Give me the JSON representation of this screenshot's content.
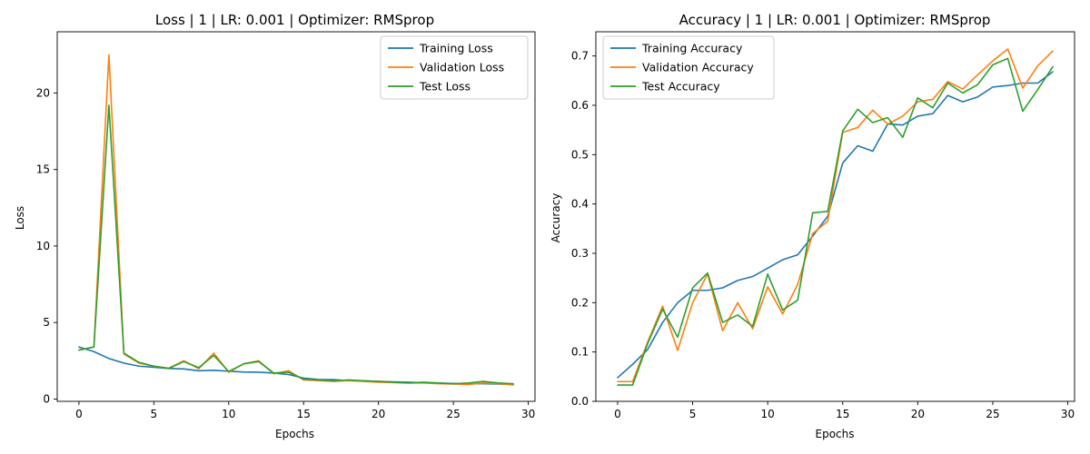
{
  "chart_data": [
    {
      "type": "line",
      "title": "Loss | 1 | LR: 0.001 | Optimizer: RMSprop",
      "xlabel": "Epochs",
      "ylabel": "Loss",
      "xlim": [
        -1.45,
        30.45
      ],
      "ylim": [
        -0.15,
        24.0
      ],
      "xticks": [
        0,
        5,
        10,
        15,
        20,
        25,
        30
      ],
      "yticks": [
        0,
        5,
        10,
        15,
        20
      ],
      "legend": "top-right",
      "x": [
        0,
        1,
        2,
        3,
        4,
        5,
        6,
        7,
        8,
        9,
        10,
        11,
        12,
        13,
        14,
        15,
        16,
        17,
        18,
        19,
        20,
        21,
        22,
        23,
        24,
        25,
        26,
        27,
        28,
        29
      ],
      "series": [
        {
          "name": "Training Loss",
          "color": "#1f77b4",
          "values": [
            3.4,
            3.1,
            2.65,
            2.35,
            2.15,
            2.08,
            2.0,
            1.97,
            1.85,
            1.88,
            1.82,
            1.77,
            1.75,
            1.7,
            1.6,
            1.37,
            1.28,
            1.27,
            1.2,
            1.18,
            1.15,
            1.12,
            1.1,
            1.06,
            1.04,
            1.02,
            1.0,
            1.0,
            0.98,
            0.96
          ]
        },
        {
          "name": "Validation Loss",
          "color": "#ff7f0e",
          "values": [
            3.2,
            3.4,
            22.5,
            2.95,
            2.35,
            2.15,
            2.02,
            2.5,
            1.98,
            3.0,
            1.75,
            2.3,
            2.5,
            1.65,
            1.85,
            1.25,
            1.2,
            1.15,
            1.2,
            1.15,
            1.1,
            1.08,
            1.05,
            1.05,
            1.0,
            0.98,
            0.95,
            1.05,
            1.0,
            0.92
          ]
        },
        {
          "name": "Test Loss",
          "color": "#2ca02c",
          "values": [
            3.2,
            3.4,
            19.2,
            3.0,
            2.4,
            2.15,
            2.0,
            2.45,
            2.05,
            2.85,
            1.8,
            2.3,
            2.45,
            1.7,
            1.75,
            1.3,
            1.25,
            1.2,
            1.25,
            1.2,
            1.15,
            1.1,
            1.05,
            1.1,
            1.05,
            1.0,
            1.05,
            1.15,
            1.05,
            1.0
          ]
        }
      ]
    },
    {
      "type": "line",
      "title": "Accuracy | 1 | LR: 0.001 | Optimizer: RMSprop",
      "xlabel": "Epochs",
      "ylabel": "Accuracy",
      "xlim": [
        -1.45,
        30.45
      ],
      "ylim": [
        0.0,
        0.749
      ],
      "xticks": [
        0,
        5,
        10,
        15,
        20,
        25,
        30
      ],
      "yticks": [
        0.0,
        0.1,
        0.2,
        0.3,
        0.4,
        0.5,
        0.6,
        0.7
      ],
      "legend": "top-left",
      "x": [
        0,
        1,
        2,
        3,
        4,
        5,
        6,
        7,
        8,
        9,
        10,
        11,
        12,
        13,
        14,
        15,
        16,
        17,
        18,
        19,
        20,
        21,
        22,
        23,
        24,
        25,
        26,
        27,
        28,
        29
      ],
      "series": [
        {
          "name": "Training Accuracy",
          "color": "#1f77b4",
          "values": [
            0.048,
            0.075,
            0.105,
            0.16,
            0.2,
            0.225,
            0.225,
            0.23,
            0.245,
            0.253,
            0.27,
            0.287,
            0.297,
            0.335,
            0.375,
            0.483,
            0.518,
            0.507,
            0.562,
            0.56,
            0.578,
            0.583,
            0.62,
            0.607,
            0.617,
            0.637,
            0.64,
            0.645,
            0.645,
            0.668
          ]
        },
        {
          "name": "Validation Accuracy",
          "color": "#ff7f0e",
          "values": [
            0.04,
            0.04,
            0.12,
            0.193,
            0.103,
            0.2,
            0.258,
            0.143,
            0.2,
            0.147,
            0.232,
            0.177,
            0.237,
            0.34,
            0.365,
            0.545,
            0.555,
            0.59,
            0.562,
            0.578,
            0.607,
            0.612,
            0.648,
            0.633,
            0.662,
            0.69,
            0.714,
            0.635,
            0.68,
            0.71
          ]
        },
        {
          "name": "Test Accuracy",
          "color": "#2ca02c",
          "values": [
            0.033,
            0.033,
            0.117,
            0.187,
            0.13,
            0.23,
            0.26,
            0.16,
            0.175,
            0.152,
            0.258,
            0.185,
            0.205,
            0.382,
            0.385,
            0.548,
            0.592,
            0.565,
            0.575,
            0.535,
            0.615,
            0.595,
            0.645,
            0.625,
            0.642,
            0.682,
            0.695,
            0.588,
            0.632,
            0.678
          ]
        }
      ]
    }
  ]
}
